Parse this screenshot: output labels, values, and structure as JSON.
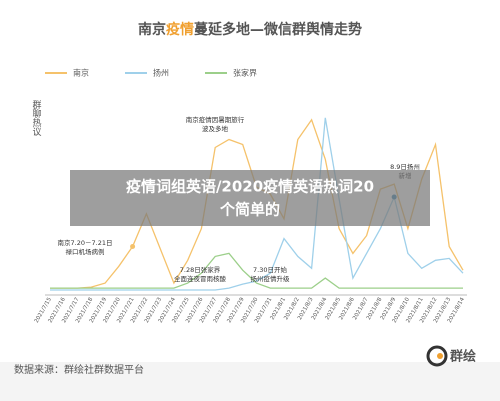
{
  "chart_data": {
    "type": "line",
    "title": [
      "南京",
      "疫情",
      "蔓延多地—微信群舆情走势"
    ],
    "title_colors": [
      "#555555",
      "#f0a030",
      "#555555"
    ],
    "y_label": "群聊热议",
    "categories": [
      "2021/7/15",
      "2021/7/16",
      "2021/7/17",
      "2021/7/18",
      "2021/7/19",
      "2021/7/20",
      "2021/7/21",
      "2021/7/22",
      "2021/7/23",
      "2021/7/24",
      "2021/7/25",
      "2021/7/26",
      "2021/7/27",
      "2021/7/28",
      "2021/7/29",
      "2021/7/30",
      "2021/7/31",
      "2021/8/1",
      "2021/8/2",
      "2021/8/3",
      "2021/8/4",
      "2021/8/5",
      "2021/8/6",
      "2021/8/7",
      "2021/8/8",
      "2021/8/9",
      "2021/8/10",
      "2021/8/11",
      "2021/8/12",
      "2021/8/13",
      "2021/8/14"
    ],
    "series": [
      {
        "name": "南京",
        "color": "#f5c26b",
        "values": [
          2.5,
          2.5,
          2.5,
          3,
          5,
          13.5,
          23.5,
          40,
          22.5,
          5,
          16.5,
          32.5,
          73.5,
          77.5,
          75,
          53.5,
          50,
          37.5,
          77.5,
          87.5,
          67.5,
          32.5,
          20,
          29,
          52.5,
          55,
          32.5,
          57.5,
          75,
          23.5,
          11.5
        ]
      },
      {
        "name": "扬州",
        "color": "#9fd0ea",
        "values": [
          1.5,
          1.5,
          1.5,
          1.5,
          1.5,
          1.5,
          1.5,
          1.5,
          1.5,
          1.5,
          1.5,
          1.5,
          1.5,
          2.5,
          4.5,
          6,
          10,
          27.5,
          18.5,
          12.5,
          88.5,
          47.5,
          7.5,
          20,
          32.5,
          48.5,
          20,
          12.5,
          16.5,
          17.5,
          10
        ]
      },
      {
        "name": "张家界",
        "color": "#9ccf8a",
        "values": [
          2.5,
          2.5,
          2.5,
          2.5,
          2.5,
          2.5,
          2.5,
          2.5,
          2.5,
          2.5,
          5,
          10,
          18.5,
          20,
          11.5,
          5,
          2.5,
          2.5,
          2.5,
          2.5,
          7.5,
          2.5,
          2.5,
          2.5,
          2.5,
          2.5,
          2.5,
          2.5,
          2.5,
          2.5,
          2.5
        ]
      }
    ],
    "ylim": [
      0,
      100
    ],
    "annotations": [
      [
        "南京7.20－7.21日",
        "禄口机场病例"
      ],
      [
        "南京疫情因暑期旅行",
        "波及多地"
      ],
      [
        "7.28日张家界",
        "全面连夜冒雨核酸"
      ],
      [
        "7.30日开始",
        "扬州疫情升级"
      ],
      [
        "8.9日扬州",
        "新增"
      ]
    ]
  },
  "overlay": [
    "疫情词组英语/2020疫情英语热词20",
    "个简单的"
  ],
  "footer": {
    "source": "数据来源：群绘社群数据平台",
    "logo": "群绘"
  }
}
